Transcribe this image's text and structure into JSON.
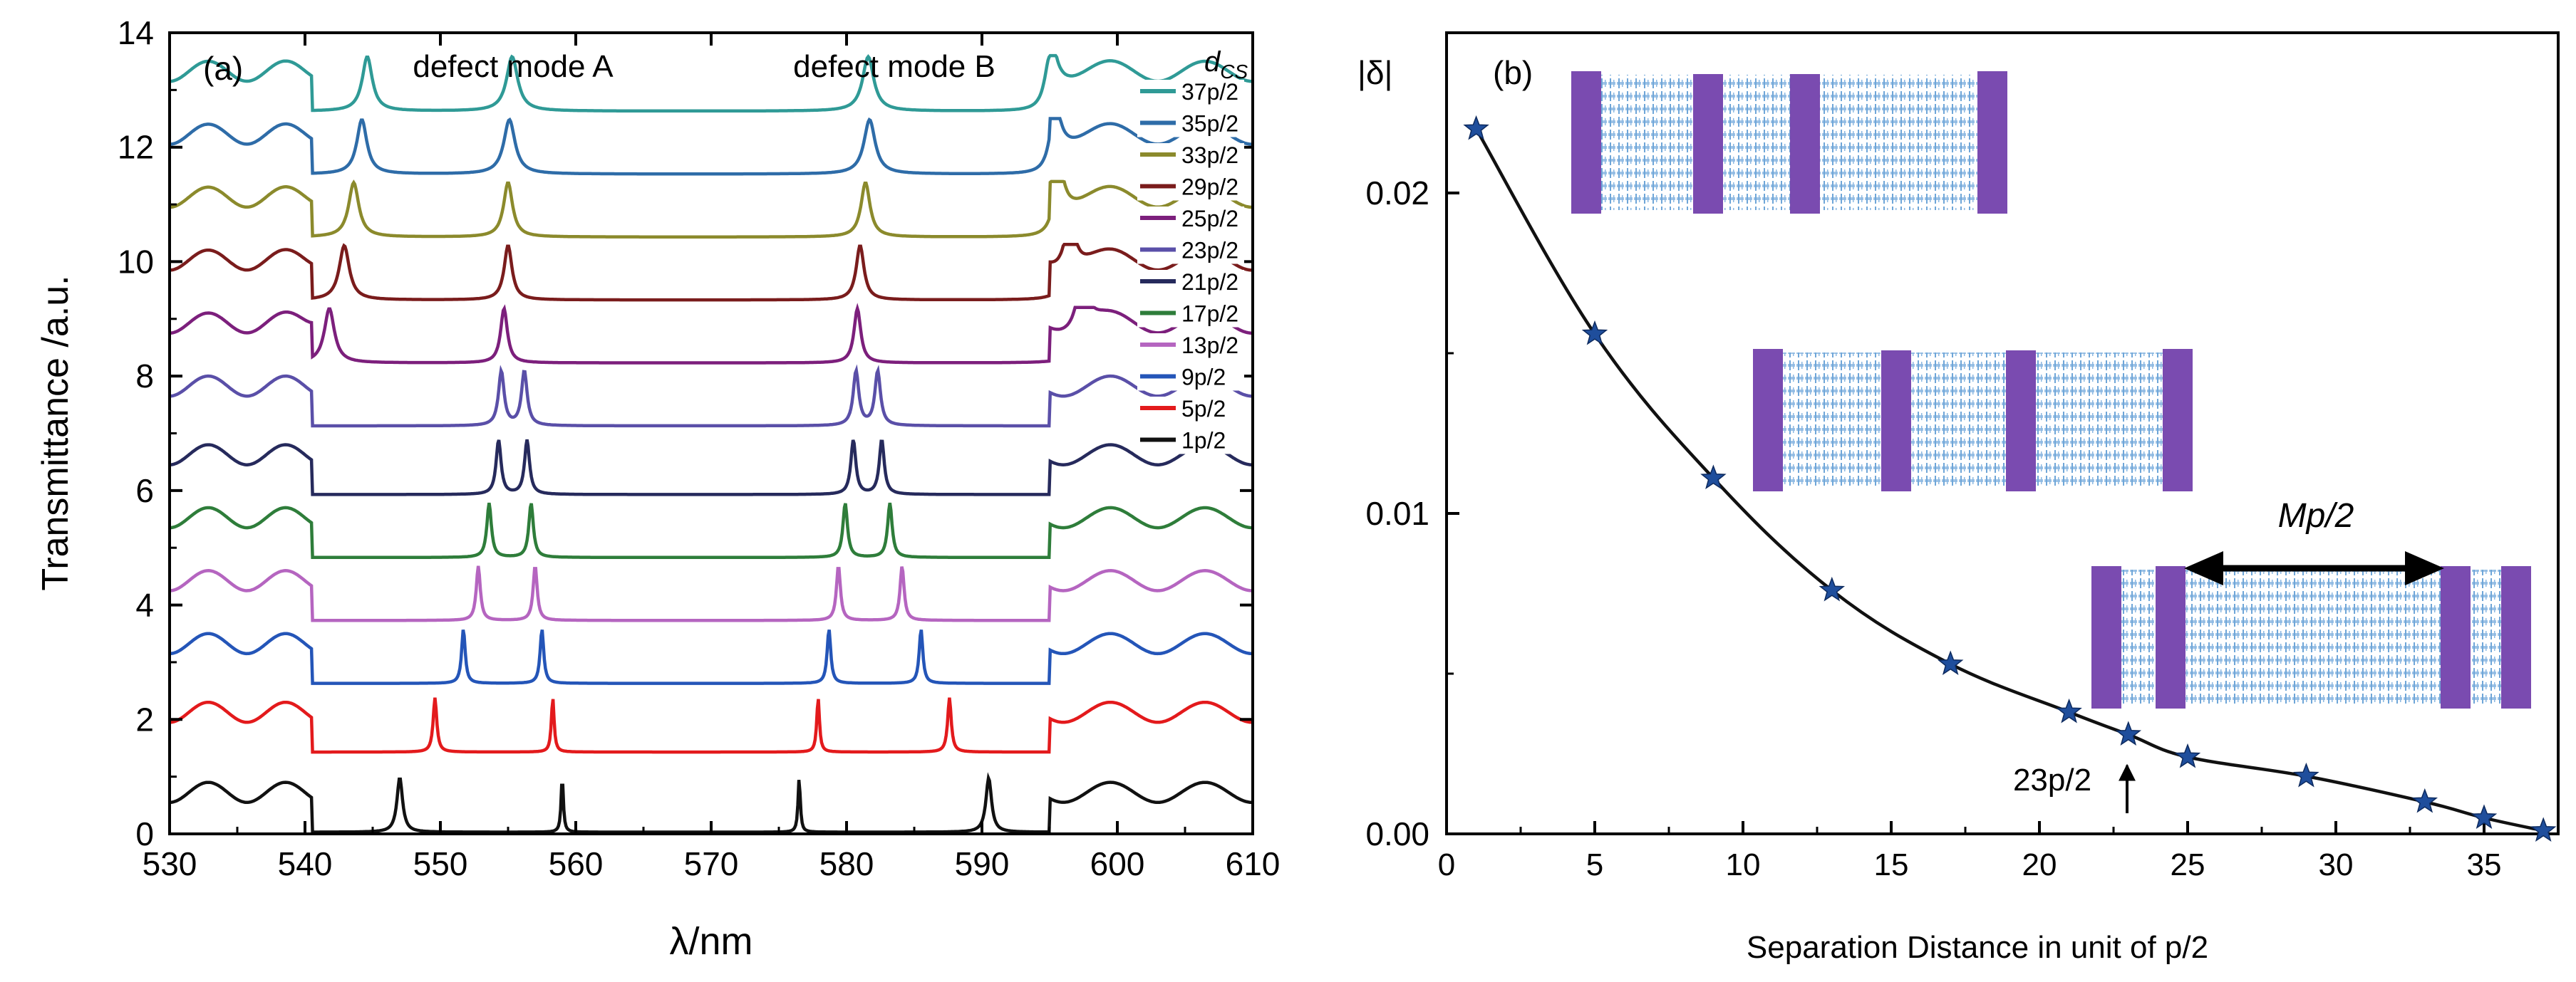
{
  "chart_data": [
    {
      "type": "line",
      "panel_label": "(a)",
      "xlabel": "λ/nm",
      "ylabel": "Transmittance /a.u.",
      "xlim": [
        530,
        610
      ],
      "ylim": [
        0,
        14
      ],
      "xticks": [
        "530",
        "540",
        "550",
        "560",
        "570",
        "580",
        "590",
        "600",
        "610"
      ],
      "yticks": [
        "0",
        "2",
        "4",
        "6",
        "8",
        "10",
        "12",
        "14"
      ],
      "annotations": [
        "defect mode A",
        "defect mode B"
      ],
      "legend_title": "d",
      "legend_title_sub": "CS",
      "legend_position": "right",
      "series": [
        {
          "name": "37p/2",
          "color": "#2f9a96",
          "offset": 12.6,
          "peaks": [
            544.6,
            555.3,
            581.6,
            595.0
          ],
          "widths": [
            0.45,
            0.5,
            0.5,
            0.45
          ]
        },
        {
          "name": "35p/2",
          "color": "#2e6ca8",
          "offset": 11.5,
          "peaks": [
            544.2,
            555.1,
            581.7,
            595.3
          ],
          "widths": [
            0.45,
            0.5,
            0.5,
            0.45
          ]
        },
        {
          "name": "33p/2",
          "color": "#8b8a2c",
          "offset": 10.4,
          "peaks": [
            543.6,
            555.0,
            581.4,
            595.6
          ],
          "widths": [
            0.45,
            0.4,
            0.4,
            0.45
          ]
        },
        {
          "name": "29p/2",
          "color": "#7a1c1c",
          "offset": 9.3,
          "peaks": [
            542.9,
            555.0,
            581.0,
            596.5
          ],
          "widths": [
            0.45,
            0.35,
            0.35,
            0.45
          ]
        },
        {
          "name": "25p/2",
          "color": "#7c1f7c",
          "offset": 8.2,
          "peaks": [
            541.8,
            554.7,
            580.8,
            597.4
          ],
          "widths": [
            0.45,
            0.3,
            0.3,
            0.45
          ]
        },
        {
          "name": "23p/2",
          "color": "#5a4fa8",
          "offset": 7.1,
          "peaks": [
            554.5,
            556.2,
            580.7,
            582.3
          ],
          "widths": [
            0.25,
            0.25,
            0.25,
            0.25
          ]
        },
        {
          "name": "21p/2",
          "color": "#262a5c",
          "offset": 5.9,
          "peaks": [
            554.3,
            556.4,
            580.5,
            582.6
          ],
          "widths": [
            0.22,
            0.22,
            0.22,
            0.22
          ]
        },
        {
          "name": "17p/2",
          "color": "#2e7d3a",
          "offset": 4.8,
          "peaks": [
            553.6,
            556.7,
            579.9,
            583.2
          ],
          "widths": [
            0.2,
            0.2,
            0.2,
            0.2
          ]
        },
        {
          "name": "13p/2",
          "color": "#b565c0",
          "offset": 3.7,
          "peaks": [
            552.8,
            557.0,
            579.4,
            584.1
          ],
          "widths": [
            0.18,
            0.18,
            0.18,
            0.18
          ]
        },
        {
          "name": "9p/2",
          "color": "#2455b8",
          "offset": 2.6,
          "peaks": [
            551.7,
            557.5,
            578.7,
            585.5
          ],
          "widths": [
            0.16,
            0.16,
            0.16,
            0.16
          ]
        },
        {
          "name": "5p/2",
          "color": "#e31a1c",
          "offset": 1.4,
          "peaks": [
            549.6,
            558.3,
            577.9,
            587.6
          ],
          "widths": [
            0.16,
            0.12,
            0.12,
            0.16
          ]
        },
        {
          "name": "1p/2",
          "color": "#111111",
          "offset": 0.0,
          "peaks": [
            547.0,
            559.0,
            576.5,
            590.5
          ],
          "widths": [
            0.25,
            0.1,
            0.1,
            0.25
          ]
        }
      ]
    },
    {
      "type": "line",
      "panel_label": "(b)",
      "xlabel": "Separation Distance in unit of p/2",
      "ylabel": "|δ|",
      "xlim": [
        0,
        37.5
      ],
      "ylim": [
        0,
        0.025
      ],
      "xticks": [
        "0",
        "5",
        "10",
        "15",
        "20",
        "25",
        "30",
        "35"
      ],
      "yticks": [
        "0.00",
        "0.01",
        "0.02"
      ],
      "marker": "star",
      "color": "#1f4e9c",
      "x": [
        1,
        5,
        9,
        13,
        17,
        21,
        23,
        25,
        29,
        33,
        35,
        37
      ],
      "y": [
        0.022,
        0.0156,
        0.0111,
        0.0076,
        0.0053,
        0.0038,
        0.0031,
        0.0024,
        0.0018,
        0.001,
        0.0005,
        0.0001
      ],
      "annotations": {
        "arrow_label": "23p/2",
        "span_label": "Mp/2"
      }
    }
  ]
}
